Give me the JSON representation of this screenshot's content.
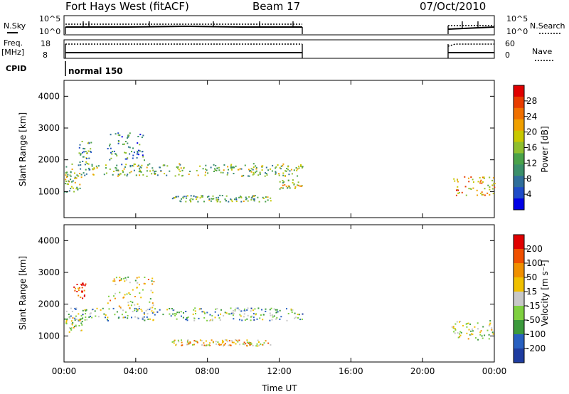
{
  "header": {
    "title": "Fort Hays West (fitACF)",
    "beam": "Beam 17",
    "date": "07/Oct/2010"
  },
  "strips": {
    "nsky_label": "N.Sky",
    "nsky_ticks": [
      "10^5",
      "10^0"
    ],
    "nsearch_label": "N.Search",
    "nsearch_ticks": [
      "10^5",
      "10^0"
    ],
    "freq_label": "Freq.",
    "freq_unit": "[MHz]",
    "freq_ticks": [
      "18",
      "8"
    ],
    "nave_label": "Nave",
    "nave_ticks": [
      "60",
      "0"
    ],
    "cpid_label": "CPID",
    "cpid_value": "normal 150"
  },
  "chart_data": [
    {
      "type": "heatmap",
      "title": "",
      "xlabel": "Time UT",
      "ylabel": "Slant Range [km]",
      "x_ticks": [
        "00:00",
        "04:00",
        "08:00",
        "12:00",
        "16:00",
        "20:00",
        "00:00"
      ],
      "y_ticks": [
        "1000",
        "2000",
        "3000",
        "4000"
      ],
      "xlim": [
        0,
        24
      ],
      "ylim": [
        180,
        4500
      ],
      "colorbar": {
        "label": "Power [dB]",
        "ticks": [
          "28",
          "24",
          "20",
          "16",
          "12",
          "8",
          "4"
        ],
        "colors": [
          "#0000e6",
          "#1f4cc8",
          "#2f6e9a",
          "#3b8f6a",
          "#4aa24a",
          "#8fbf2f",
          "#c8c800",
          "#f0a000",
          "#f07000",
          "#e83c00",
          "#e00000"
        ]
      },
      "bands": [
        {
          "t0": 0.0,
          "t1": 13.3,
          "r0": 1500,
          "r1": 1900,
          "level": 0.45
        },
        {
          "t0": 0.0,
          "t1": 1.0,
          "r0": 1000,
          "r1": 1600,
          "level": 0.5
        },
        {
          "t0": 0.8,
          "t1": 1.5,
          "r0": 1700,
          "r1": 2600,
          "level": 0.35
        },
        {
          "t0": 2.4,
          "t1": 4.5,
          "r0": 1800,
          "r1": 2900,
          "level": 0.3
        },
        {
          "t0": 6.0,
          "t1": 11.5,
          "r0": 700,
          "r1": 900,
          "level": 0.4
        },
        {
          "t0": 12.0,
          "t1": 13.3,
          "r0": 1100,
          "r1": 1400,
          "level": 0.55
        },
        {
          "t0": 21.6,
          "t1": 24.0,
          "r0": 900,
          "r1": 1500,
          "level": 0.7
        }
      ]
    },
    {
      "type": "heatmap",
      "title": "",
      "xlabel": "Time UT",
      "ylabel": "Slant Range [km]",
      "x_ticks": [
        "00:00",
        "04:00",
        "08:00",
        "12:00",
        "16:00",
        "20:00",
        "00:00"
      ],
      "y_ticks": [
        "1000",
        "2000",
        "3000",
        "4000"
      ],
      "xlim": [
        0,
        24
      ],
      "ylim": [
        180,
        4500
      ],
      "colorbar": {
        "label": "Velocity [m s⁻¹]",
        "ticks": [
          "200",
          "100",
          "50",
          "15",
          "-15",
          "-50",
          "-100",
          "-200"
        ],
        "colors": [
          "#1e3ca0",
          "#2860c0",
          "#3c9a3c",
          "#7fd040",
          "#c8c8c8",
          "#f0c000",
          "#f09000",
          "#f05000",
          "#e00000"
        ]
      },
      "bands": [
        {
          "t0": 0.0,
          "t1": 13.3,
          "r0": 1500,
          "r1": 1900,
          "level": 0.35
        },
        {
          "t0": 0.0,
          "t1": 1.0,
          "r0": 1100,
          "r1": 1600,
          "level": 0.5
        },
        {
          "t0": 0.5,
          "t1": 1.2,
          "r0": 2200,
          "r1": 2700,
          "level": 0.9
        },
        {
          "t0": 2.4,
          "t1": 5.0,
          "r0": 1800,
          "r1": 2900,
          "level": 0.55
        },
        {
          "t0": 6.0,
          "t1": 11.5,
          "r0": 700,
          "r1": 900,
          "level": 0.6
        },
        {
          "t0": 21.6,
          "t1": 24.0,
          "r0": 900,
          "r1": 1500,
          "level": 0.45
        }
      ]
    }
  ]
}
